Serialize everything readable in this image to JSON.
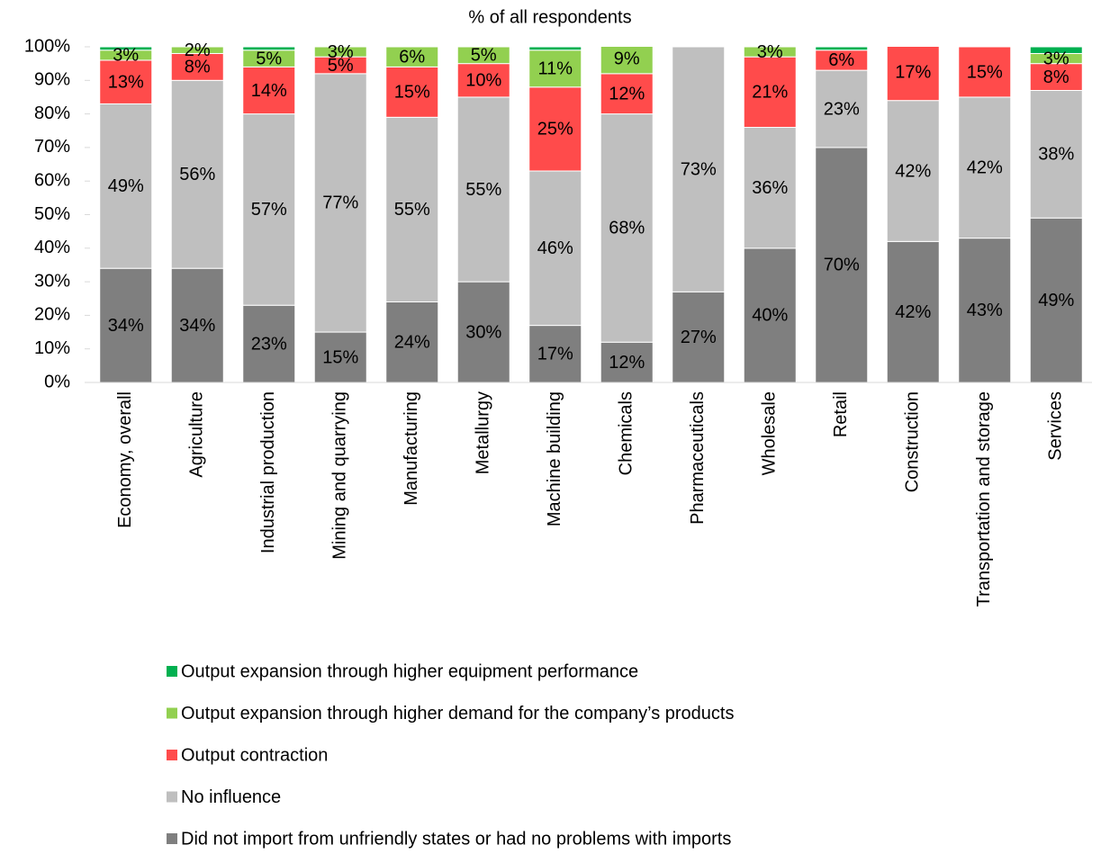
{
  "chart_data": {
    "type": "stacked_bar",
    "title": "% of all respondents",
    "categories": [
      "Economy, overall",
      "Agriculture",
      "Industrial production",
      "Mining and quarrying",
      "Manufacturing",
      "Metallurgy",
      "Machine building",
      "Chemicals",
      "Pharmaceuticals",
      "Wholesale",
      "Retail",
      "Construction",
      "Transportation and storage",
      "Services"
    ],
    "series": [
      {
        "name": "Did not import from unfriendly states or had no problems with imports",
        "color": "#7f7f7f",
        "values": [
          34,
          34,
          23,
          15,
          24,
          30,
          17,
          12,
          27,
          40,
          70,
          42,
          43,
          49
        ],
        "value_labels": [
          "34%",
          "34%",
          "23%",
          "15%",
          "24%",
          "30%",
          "17%",
          "12%",
          "27%",
          "40%",
          "70%",
          "42%",
          "43%",
          "49%"
        ]
      },
      {
        "name": "No influence",
        "color": "#bfbfbf",
        "values": [
          49,
          56,
          57,
          77,
          55,
          55,
          46,
          68,
          73,
          36,
          23,
          42,
          42,
          38
        ],
        "value_labels": [
          "49%",
          "56%",
          "57%",
          "77%",
          "55%",
          "55%",
          "46%",
          "68%",
          "73%",
          "36%",
          "23%",
          "42%",
          "42%",
          "38%"
        ]
      },
      {
        "name": "Output contraction",
        "color": "#ff4b4b",
        "values": [
          13,
          8,
          14,
          5,
          15,
          10,
          25,
          12,
          0,
          21,
          6,
          17,
          15,
          8
        ],
        "value_labels": [
          "13%",
          "8%",
          "14%",
          "5%",
          "15%",
          "10%",
          "25%",
          "12%",
          null,
          "21%",
          "6%",
          "17%",
          "15%",
          "8%"
        ]
      },
      {
        "name": "Output expansion through higher demand for the company’s products",
        "color": "#92d050",
        "values": [
          3,
          2,
          5,
          3,
          6,
          5,
          11,
          9,
          0,
          3,
          0,
          0,
          0,
          3
        ],
        "value_labels": [
          "3%",
          "2%",
          "5%",
          "3%",
          "6%",
          "5%",
          "11%",
          "9%",
          null,
          "3%",
          null,
          null,
          null,
          "3%"
        ]
      },
      {
        "name": "Output expansion through higher equipment performance",
        "color": "#00b050",
        "values": [
          1,
          2,
          1,
          0,
          0,
          0,
          1,
          0,
          0,
          0,
          1,
          0,
          0,
          2
        ]
      }
    ],
    "ylim": [
      0,
      100
    ],
    "yticks": [
      {
        "value": 0,
        "label": "0%"
      },
      {
        "value": 10,
        "label": "10%"
      },
      {
        "value": 20,
        "label": "20%"
      },
      {
        "value": 30,
        "label": "30%"
      },
      {
        "value": 40,
        "label": "40%"
      },
      {
        "value": 50,
        "label": "50%"
      },
      {
        "value": 60,
        "label": "60%"
      },
      {
        "value": 70,
        "label": "70%"
      },
      {
        "value": 80,
        "label": "80%"
      },
      {
        "value": 90,
        "label": "90%"
      },
      {
        "value": 100,
        "label": "100%"
      }
    ],
    "grid": false,
    "legend": "bottom"
  }
}
